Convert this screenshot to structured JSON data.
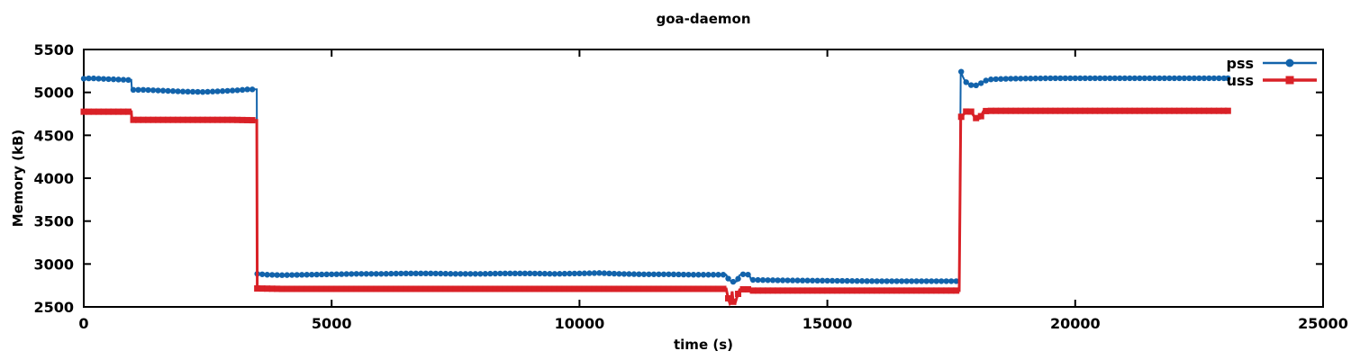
{
  "chart_data": {
    "type": "line",
    "title": "goa-daemon",
    "xlabel": "time (s)",
    "ylabel": "Memory (kB)",
    "xlim": [
      0,
      25000
    ],
    "ylim": [
      2500,
      5500
    ],
    "xticks": [
      0,
      5000,
      10000,
      15000,
      20000,
      25000
    ],
    "yticks": [
      2500,
      3000,
      3500,
      4000,
      4500,
      5000,
      5500
    ],
    "grid": false,
    "legend_position": "top-right",
    "axis_color": "#000000",
    "background": "#ffffff",
    "marker_interval": 100,
    "series": [
      {
        "name": "pss",
        "color": "#1263ab",
        "marker": "circle",
        "line_width": 2,
        "marker_size": 3.2,
        "points": [
          [
            0,
            5160
          ],
          [
            150,
            5165
          ],
          [
            300,
            5160
          ],
          [
            500,
            5155
          ],
          [
            700,
            5150
          ],
          [
            900,
            5145
          ],
          [
            960,
            5145
          ],
          [
            970,
            5030
          ],
          [
            1200,
            5030
          ],
          [
            1600,
            5020
          ],
          [
            2000,
            5010
          ],
          [
            2400,
            5005
          ],
          [
            2800,
            5015
          ],
          [
            3100,
            5025
          ],
          [
            3300,
            5035
          ],
          [
            3490,
            5035
          ],
          [
            3500,
            2885
          ],
          [
            3700,
            2875
          ],
          [
            4000,
            2870
          ],
          [
            4500,
            2875
          ],
          [
            5000,
            2880
          ],
          [
            5500,
            2885
          ],
          [
            6000,
            2885
          ],
          [
            6500,
            2890
          ],
          [
            7000,
            2890
          ],
          [
            7500,
            2885
          ],
          [
            8000,
            2885
          ],
          [
            8500,
            2890
          ],
          [
            9000,
            2890
          ],
          [
            9500,
            2885
          ],
          [
            10000,
            2890
          ],
          [
            10400,
            2895
          ],
          [
            10800,
            2885
          ],
          [
            11300,
            2880
          ],
          [
            11800,
            2880
          ],
          [
            12300,
            2875
          ],
          [
            12700,
            2875
          ],
          [
            12960,
            2875
          ],
          [
            13000,
            2830
          ],
          [
            13050,
            2800
          ],
          [
            13120,
            2790
          ],
          [
            13180,
            2800
          ],
          [
            13230,
            2870
          ],
          [
            13300,
            2880
          ],
          [
            13430,
            2875
          ],
          [
            13460,
            2815
          ],
          [
            14000,
            2810
          ],
          [
            15000,
            2805
          ],
          [
            16000,
            2800
          ],
          [
            17000,
            2800
          ],
          [
            17660,
            2800
          ],
          [
            17690,
            5260
          ],
          [
            17730,
            5185
          ],
          [
            17770,
            5140
          ],
          [
            17820,
            5105
          ],
          [
            17900,
            5085
          ],
          [
            17990,
            5080
          ],
          [
            18080,
            5100
          ],
          [
            18160,
            5130
          ],
          [
            18260,
            5150
          ],
          [
            18400,
            5155
          ],
          [
            18700,
            5160
          ],
          [
            19500,
            5165
          ],
          [
            21000,
            5165
          ],
          [
            22000,
            5165
          ],
          [
            23080,
            5165
          ]
        ]
      },
      {
        "name": "uss",
        "color": "#d92127",
        "marker": "square",
        "line_width": 3,
        "marker_size": 7,
        "points": [
          [
            0,
            4775
          ],
          [
            500,
            4775
          ],
          [
            960,
            4775
          ],
          [
            970,
            4680
          ],
          [
            2000,
            4680
          ],
          [
            3000,
            4680
          ],
          [
            3490,
            4675
          ],
          [
            3500,
            2715
          ],
          [
            4000,
            2710
          ],
          [
            5000,
            2710
          ],
          [
            6000,
            2710
          ],
          [
            7000,
            2710
          ],
          [
            8000,
            2710
          ],
          [
            9000,
            2710
          ],
          [
            10000,
            2710
          ],
          [
            11000,
            2710
          ],
          [
            12000,
            2710
          ],
          [
            12960,
            2710
          ],
          [
            13000,
            2600
          ],
          [
            13030,
            2545
          ],
          [
            13060,
            2580
          ],
          [
            13080,
            2680
          ],
          [
            13100,
            2560
          ],
          [
            13140,
            2545
          ],
          [
            13180,
            2620
          ],
          [
            13230,
            2700
          ],
          [
            13300,
            2705
          ],
          [
            13430,
            2705
          ],
          [
            13460,
            2690
          ],
          [
            14000,
            2690
          ],
          [
            15000,
            2690
          ],
          [
            16000,
            2690
          ],
          [
            17000,
            2690
          ],
          [
            17660,
            2690
          ],
          [
            17690,
            4710
          ],
          [
            17760,
            4750
          ],
          [
            17820,
            4790
          ],
          [
            17890,
            4785
          ],
          [
            17950,
            4730
          ],
          [
            18010,
            4695
          ],
          [
            18080,
            4700
          ],
          [
            18150,
            4780
          ],
          [
            18250,
            4785
          ],
          [
            19000,
            4785
          ],
          [
            20000,
            4785
          ],
          [
            21000,
            4785
          ],
          [
            22000,
            4785
          ],
          [
            23080,
            4785
          ]
        ]
      }
    ]
  },
  "legend": {
    "entries": [
      "pss",
      "uss"
    ]
  }
}
